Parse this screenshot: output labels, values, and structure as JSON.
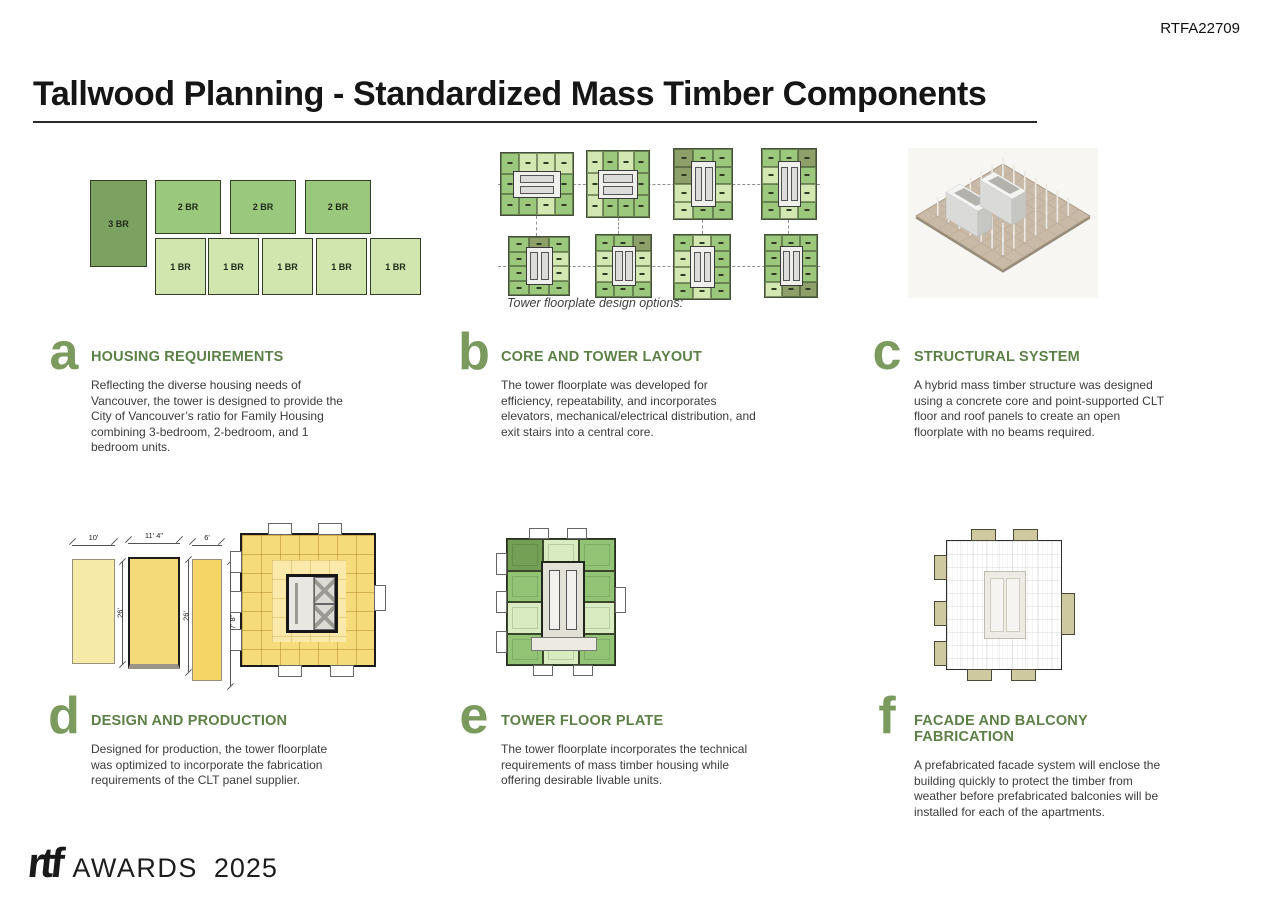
{
  "page": {
    "code": "RTFA22709",
    "title": "Tallwood Planning - Standardized Mass Timber Components"
  },
  "colors": {
    "accent_letter_green": "#7b9b5e",
    "heading_green": "#5d8046",
    "body_text": "#3c3c3c",
    "unit_3br": "#7ca261",
    "unit_2br": "#9ac87c",
    "unit_1br": "#d0e6ae",
    "panel_yellow_light": "#f6eaa9",
    "panel_yellow_mid": "#f4da79",
    "panel_yellow_deep": "#f5d565",
    "plate_tan": "#c8baa7",
    "facade_khaki": "#cfc9a0"
  },
  "housing": {
    "units": [
      {
        "label": "3 BR",
        "type": "hu0"
      },
      {
        "label": "2 BR",
        "type": "hu1"
      },
      {
        "label": "2 BR",
        "type": "hu2"
      },
      {
        "label": "2 BR",
        "type": "hu3"
      },
      {
        "label": "1 BR",
        "type": "hu4"
      },
      {
        "label": "1 BR",
        "type": "hu5"
      },
      {
        "label": "1 BR",
        "type": "hu6"
      },
      {
        "label": "1 BR",
        "type": "hu7"
      },
      {
        "label": "1 BR",
        "type": "hu8"
      }
    ]
  },
  "floorplates": {
    "caption": "Tower floorplate design options:",
    "palette": {
      "L": "#d3e7b2",
      "M": "#9cc87e",
      "D": "#8da069"
    },
    "variants": [
      {
        "shape": "h",
        "cells": "MLLLMLLMMMLM"
      },
      {
        "shape": "h",
        "cells": "LMLMLLLMLMMM"
      },
      {
        "shape": "v",
        "cells": "DMMDLMLLLLMM"
      },
      {
        "shape": "v",
        "cells": "MMDLLMMLLMLM"
      },
      {
        "shape": "v",
        "cells": "MDMMLLMLLMMM"
      },
      {
        "shape": "v",
        "cells": "MMDLMLLMLMMM"
      },
      {
        "shape": "v",
        "cells": "MLMLLMLLMMLM"
      },
      {
        "shape": "v",
        "cells": "MMMMLMMLMLDD"
      }
    ]
  },
  "production": {
    "panels": [
      {
        "width": "10'",
        "height": "26'"
      },
      {
        "width": "11' 4\"",
        "height": "26'"
      },
      {
        "width": "6'",
        "height": "27' 8\""
      }
    ]
  },
  "tower_plan": {
    "palette": {
      "L": "#d8ebc1",
      "M": "#93c475",
      "D": "#74a055"
    },
    "cells": "DLMMLMLMLMLM"
  },
  "sections": [
    {
      "letter": "a",
      "heading": "HOUSING REQUIREMENTS",
      "body": "Reflecting the diverse housing needs of Vancouver, the tower is designed to provide the City of Vancouver’s ratio for Family Housing combining 3-bedroom, 2-bedroom, and 1 bedroom units."
    },
    {
      "letter": "b",
      "heading": "CORE AND TOWER LAYOUT",
      "body": "The tower floorplate was developed for efficiency, repeatability, and incorporates elevators, mechanical/electrical distribution, and exit stairs into a central core."
    },
    {
      "letter": "c",
      "heading": "STRUCTURAL SYSTEM",
      "body": "A hybrid mass timber structure was designed using a concrete core and point-supported CLT floor and roof panels to create an open floorplate with no beams required."
    },
    {
      "letter": "d",
      "heading": "DESIGN AND PRODUCTION",
      "body": "Designed for production, the tower floorplate was optimized to incorporate the fabrication requirements of the CLT panel supplier."
    },
    {
      "letter": "e",
      "heading": "TOWER FLOOR PLATE",
      "body": "The tower floorplate incorporates the technical requirements of mass timber housing while offering desirable livable units."
    },
    {
      "letter": "f",
      "heading": "FACADE AND BALCONY FABRICATION",
      "body": "A prefabricated facade system will enclose the building quickly to protect the timber from weather before prefabricated balconies will be installed for each of the apartments."
    }
  ],
  "footer": {
    "logo": "rtf",
    "award": "AWARDS",
    "year": "2025"
  }
}
